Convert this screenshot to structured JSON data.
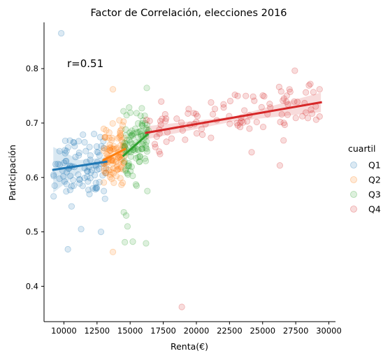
{
  "chart_data": {
    "type": "scatter",
    "title": "Factor de Correlación, elecciones 2016",
    "xlabel": "Renta(€)",
    "ylabel": "Participación",
    "xlim": [
      8500,
      30500
    ],
    "ylim": [
      0.335,
      0.885
    ],
    "x_ticks": [
      10000,
      12500,
      15000,
      17500,
      20000,
      22500,
      25000,
      27500,
      30000
    ],
    "y_ticks": [
      0.4,
      0.5,
      0.6,
      0.7,
      0.8
    ],
    "annotation": "r=0.51",
    "legend": {
      "title": "cuartil",
      "placement": "right"
    },
    "grid": false,
    "series": [
      {
        "name": "Q1",
        "color": "#1f77b4",
        "x_range": [
          9200,
          13200
        ],
        "y_center": 0.63,
        "y_spread": 0.05,
        "n": 95,
        "extra_points": [
          [
            9800,
            0.865
          ],
          [
            10300,
            0.468
          ],
          [
            11300,
            0.505
          ],
          [
            12800,
            0.5
          ],
          [
            9300,
            0.585
          ]
        ],
        "fit": {
          "x": [
            9200,
            13200
          ],
          "y": [
            0.614,
            0.629
          ]
        },
        "ci": {
          "x": [
            9200,
            11200,
            13200
          ],
          "lower": [
            0.572,
            0.61,
            0.622
          ],
          "upper": [
            0.656,
            0.632,
            0.637
          ]
        }
      },
      {
        "name": "Q2",
        "color": "#ff7f0e",
        "x_range": [
          13000,
          14600
        ],
        "y_center": 0.64,
        "y_spread": 0.045,
        "n": 100,
        "extra_points": [
          [
            13700,
            0.762
          ],
          [
            13700,
            0.463
          ]
        ],
        "fit": {
          "x": [
            13000,
            14600
          ],
          "y": [
            0.632,
            0.652
          ]
        },
        "ci": {
          "x": [
            13000,
            13800,
            14600
          ],
          "lower": [
            0.624,
            0.636,
            0.642
          ],
          "upper": [
            0.642,
            0.648,
            0.663
          ]
        }
      },
      {
        "name": "Q3",
        "color": "#2ca02c",
        "x_range": [
          14500,
          16400
        ],
        "y_center": 0.665,
        "y_spread": 0.05,
        "n": 95,
        "extra_points": [
          [
            14700,
            0.53
          ],
          [
            14600,
            0.481
          ],
          [
            15200,
            0.482
          ],
          [
            16200,
            0.479
          ],
          [
            16300,
            0.575
          ],
          [
            14800,
            0.51
          ]
        ],
        "fit": {
          "x": [
            14500,
            16300
          ],
          "y": [
            0.64,
            0.679
          ]
        },
        "ci": {
          "x": [
            14500,
            15400,
            16300
          ],
          "lower": [
            0.628,
            0.655,
            0.665
          ],
          "upper": [
            0.651,
            0.665,
            0.69
          ]
        }
      },
      {
        "name": "Q4",
        "color": "#d62728",
        "x_range": [
          16200,
          29400
        ],
        "y_center": 0.695,
        "y_spread": 0.04,
        "n": 100,
        "extra_points": [
          [
            18900,
            0.362
          ],
          [
            26300,
            0.622
          ],
          [
            29300,
            0.762
          ],
          [
            29300,
            0.712
          ],
          [
            26400,
            0.758
          ]
        ],
        "fit": {
          "x": [
            16200,
            29400
          ],
          "y": [
            0.682,
            0.738
          ]
        },
        "ci": {
          "x": [
            16200,
            22800,
            29400
          ],
          "lower": [
            0.67,
            0.703,
            0.72
          ],
          "upper": [
            0.694,
            0.712,
            0.756
          ]
        }
      }
    ]
  }
}
